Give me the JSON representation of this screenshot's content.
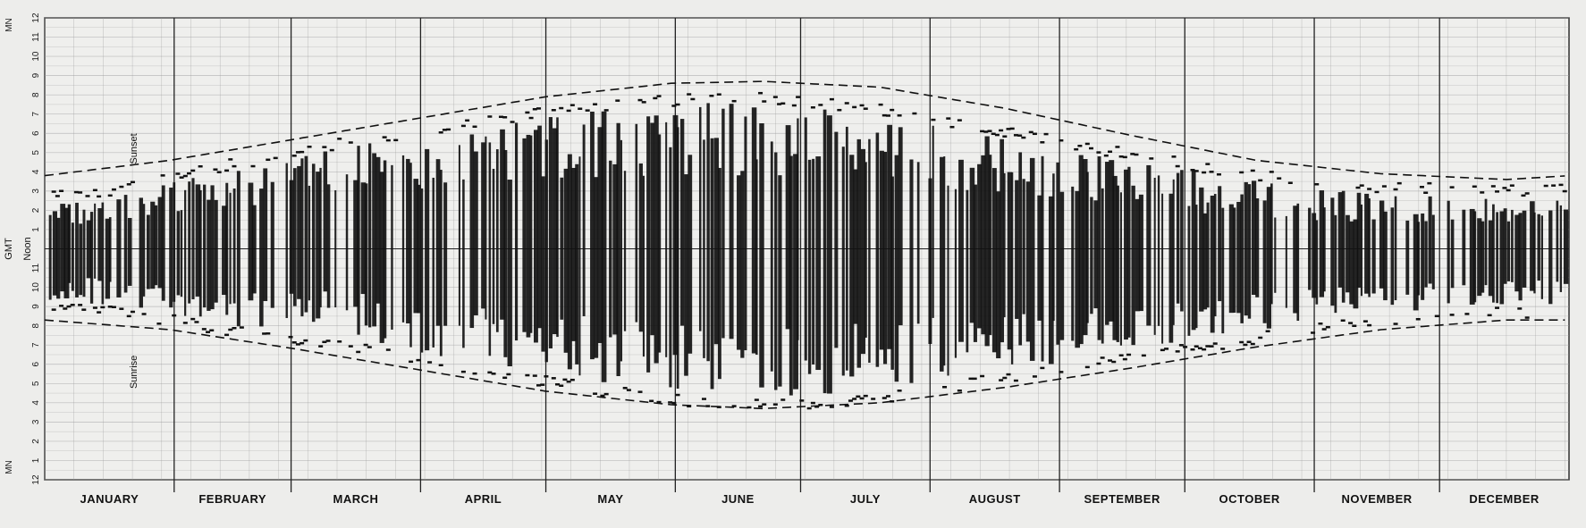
{
  "chart_data": {
    "type": "scatter",
    "title": "",
    "xlabel": "",
    "ylabel": "GMT",
    "y_axis": {
      "range": [
        0,
        24
      ],
      "tick_labels": [
        "12",
        "1",
        "2",
        "3",
        "4",
        "5",
        "6",
        "7",
        "8",
        "9",
        "10",
        "11",
        "Noon",
        "1",
        "2",
        "3",
        "4",
        "5",
        "6",
        "7",
        "8",
        "9",
        "10",
        "11",
        "12"
      ],
      "bottom_label": "MN",
      "top_label": "MN",
      "noon_label": "Noon",
      "unit_label": "GMT"
    },
    "categories": [
      "JANUARY",
      "FEBRUARY",
      "MARCH",
      "APRIL",
      "MAY",
      "JUNE",
      "JULY",
      "AUGUST",
      "SEPTEMBER",
      "OCTOBER",
      "NOVEMBER",
      "DECEMBER"
    ],
    "x_range_days": [
      0,
      365
    ],
    "grid": true,
    "annotations": {
      "sunset": "Sunset",
      "sunrise": "Sunrise"
    },
    "series": [
      {
        "name": "Sunset",
        "style": "dashed",
        "x_day": [
          0,
          30,
          60,
          90,
          120,
          150,
          172,
          200,
          230,
          260,
          290,
          320,
          350,
          365
        ],
        "y_hours": [
          15.8,
          16.6,
          17.7,
          18.8,
          19.9,
          20.6,
          20.7,
          20.4,
          19.3,
          17.9,
          16.6,
          15.9,
          15.6,
          15.8
        ]
      },
      {
        "name": "Sunrise",
        "style": "dashed",
        "x_day": [
          0,
          30,
          60,
          90,
          120,
          150,
          172,
          200,
          230,
          260,
          290,
          320,
          350,
          365
        ],
        "y_hours": [
          8.3,
          7.8,
          6.8,
          5.7,
          4.6,
          3.9,
          3.7,
          4.0,
          4.8,
          5.8,
          6.9,
          7.8,
          8.3,
          8.3
        ]
      }
    ],
    "activity_bands": {
      "description_months": [
        "JANUARY",
        "FEBRUARY",
        "MARCH",
        "APRIL",
        "MAY",
        "JUNE",
        "JULY",
        "AUGUST",
        "SEPTEMBER",
        "OCTOBER",
        "NOVEMBER",
        "DECEMBER"
      ],
      "x_day": [
        5,
        20,
        45,
        75,
        105,
        135,
        160,
        172,
        195,
        225,
        255,
        285,
        315,
        345,
        360
      ],
      "start_hours": [
        9.2,
        9.0,
        8.0,
        7.2,
        6.0,
        4.9,
        4.3,
        4.2,
        4.5,
        5.5,
        6.5,
        7.6,
        8.5,
        9.0,
        9.0
      ],
      "end_hours": [
        14.5,
        15.0,
        16.2,
        17.4,
        18.4,
        19.3,
        19.6,
        19.6,
        19.1,
        18.0,
        16.8,
        15.7,
        15.0,
        14.8,
        14.8
      ]
    },
    "colors": {
      "ink": "#111111",
      "grid": "#9a9a9a",
      "background": "#ededeb"
    }
  }
}
